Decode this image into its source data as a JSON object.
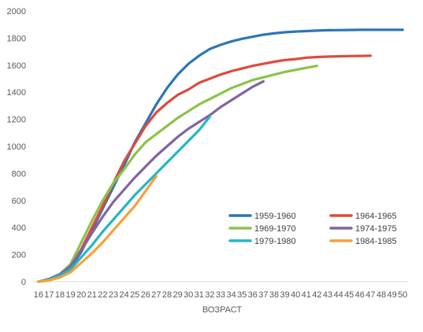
{
  "chart_data": {
    "type": "line",
    "title": "",
    "xlabel": "ВОЗРАСТ",
    "ylabel": "",
    "ylim": [
      0,
      2000
    ],
    "yticks": [
      0,
      200,
      400,
      600,
      800,
      1000,
      1200,
      1400,
      1600,
      1800,
      2000
    ],
    "x": [
      16,
      17,
      18,
      19,
      20,
      21,
      22,
      23,
      24,
      25,
      26,
      27,
      28,
      29,
      30,
      31,
      32,
      33,
      34,
      35,
      36,
      37,
      38,
      39,
      40,
      41,
      42,
      43,
      44,
      45,
      46,
      47,
      48,
      49,
      50
    ],
    "grid": false,
    "legend": "inside-right",
    "series": [
      {
        "name": "1959-1960",
        "color": "#2e75b6",
        "x": [
          16,
          17,
          18,
          19,
          20,
          21,
          22,
          23,
          24,
          25,
          26,
          27,
          28,
          29,
          30,
          31,
          32,
          33,
          34,
          35,
          36,
          37,
          38,
          39,
          40,
          41,
          42,
          43,
          44,
          45,
          46,
          47,
          48,
          49,
          50
        ],
        "values": [
          0,
          15,
          40,
          100,
          220,
          380,
          540,
          700,
          860,
          1030,
          1170,
          1310,
          1430,
          1530,
          1610,
          1670,
          1720,
          1750,
          1775,
          1795,
          1810,
          1825,
          1835,
          1843,
          1848,
          1852,
          1855,
          1858,
          1859,
          1860,
          1861,
          1861,
          1861,
          1861,
          1861
        ]
      },
      {
        "name": "1964-1965",
        "color": "#dc4b3e",
        "x": [
          16,
          17,
          18,
          19,
          20,
          21,
          22,
          23,
          24,
          25,
          26,
          27,
          28,
          29,
          30,
          31,
          32,
          33,
          34,
          35,
          36,
          37,
          38,
          39,
          40,
          41,
          42,
          43,
          44,
          45,
          46,
          47
        ],
        "values": [
          0,
          10,
          45,
          110,
          240,
          400,
          560,
          730,
          890,
          1020,
          1150,
          1250,
          1320,
          1380,
          1420,
          1470,
          1500,
          1530,
          1555,
          1575,
          1595,
          1610,
          1625,
          1638,
          1645,
          1655,
          1660,
          1663,
          1665,
          1667,
          1668,
          1670
        ]
      },
      {
        "name": "1969-1970",
        "color": "#8bc34a",
        "x": [
          16,
          17,
          18,
          19,
          20,
          21,
          22,
          23,
          24,
          25,
          26,
          27,
          28,
          29,
          30,
          31,
          32,
          33,
          34,
          35,
          36,
          37,
          38,
          39,
          40,
          41,
          42
        ],
        "values": [
          0,
          20,
          55,
          130,
          290,
          450,
          600,
          730,
          830,
          940,
          1030,
          1090,
          1150,
          1210,
          1260,
          1310,
          1350,
          1390,
          1430,
          1460,
          1490,
          1510,
          1530,
          1550,
          1565,
          1580,
          1595
        ]
      },
      {
        "name": "1974-1975",
        "color": "#8064a2",
        "x": [
          16,
          17,
          18,
          19,
          20,
          21,
          22,
          23,
          24,
          25,
          26,
          27,
          28,
          29,
          30,
          31,
          32,
          33,
          34,
          35,
          36,
          37
        ],
        "values": [
          0,
          20,
          55,
          115,
          230,
          360,
          480,
          590,
          680,
          770,
          850,
          930,
          1000,
          1070,
          1130,
          1180,
          1230,
          1290,
          1340,
          1390,
          1440,
          1480
        ]
      },
      {
        "name": "1979-1980",
        "color": "#26b5c5",
        "x": [
          16,
          17,
          18,
          19,
          20,
          21,
          22,
          23,
          24,
          25,
          26,
          27,
          28,
          29,
          30,
          31,
          32
        ],
        "values": [
          0,
          15,
          45,
          90,
          180,
          270,
          370,
          460,
          550,
          640,
          720,
          800,
          880,
          960,
          1040,
          1120,
          1220
        ]
      },
      {
        "name": "1984-1985",
        "color": "#f6a13a",
        "x": [
          16,
          17,
          18,
          19,
          20,
          21,
          22,
          23,
          24,
          25,
          26,
          27
        ],
        "values": [
          0,
          10,
          30,
          70,
          140,
          210,
          290,
          380,
          470,
          560,
          670,
          780
        ]
      }
    ]
  }
}
